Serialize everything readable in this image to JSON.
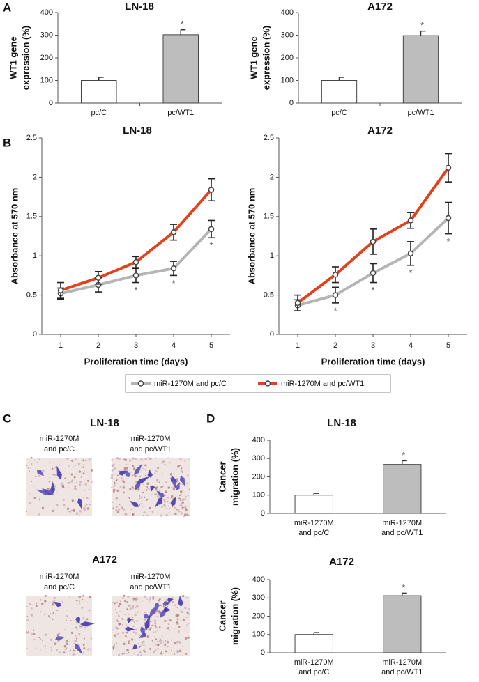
{
  "panels": [
    "A",
    "B",
    "C",
    "D"
  ],
  "panel_c": {
    "groups": [
      {
        "title": "LN-18",
        "labels": [
          [
            "miR-1270M",
            "and pc/C"
          ],
          [
            "miR-1270M",
            "and pc/WT1"
          ]
        ]
      },
      {
        "title": "A172",
        "labels": [
          [
            "miR-1270M",
            "and pc/C"
          ],
          [
            "miR-1270M",
            "and pc/WT1"
          ]
        ]
      }
    ]
  },
  "chart_data": [
    {
      "type": "bar",
      "title": "LN-18",
      "ylabel": [
        "WT1 gene",
        "expression (%)"
      ],
      "categories": [
        [
          "pc/C"
        ],
        [
          "pc/WT1"
        ]
      ],
      "values": [
        100,
        302
      ],
      "errors": [
        14,
        22
      ],
      "significance": [
        null,
        "*"
      ],
      "colors": [
        "#ffffff",
        "#bdbdbd"
      ],
      "ylim": [
        0,
        400
      ],
      "yticks": [
        0,
        100,
        200,
        300,
        400
      ]
    },
    {
      "type": "bar",
      "title": "A172",
      "ylabel": [
        "WT1 gene",
        "expression (%)"
      ],
      "categories": [
        [
          "pc/C"
        ],
        [
          "pc/WT1"
        ]
      ],
      "values": [
        100,
        298
      ],
      "errors": [
        14,
        20
      ],
      "significance": [
        null,
        "*"
      ],
      "colors": [
        "#ffffff",
        "#bdbdbd"
      ],
      "ylim": [
        0,
        400
      ],
      "yticks": [
        0,
        100,
        200,
        300,
        400
      ]
    },
    {
      "type": "line",
      "title": "LN-18",
      "ylabel": "Absorbance at 570 nm",
      "xlabel": "Proliferation time (days)",
      "x": [
        1,
        2,
        3,
        4,
        5
      ],
      "xlim": [
        0.5,
        5.5
      ],
      "xticks": [
        1,
        2,
        3,
        4,
        5
      ],
      "ylim": [
        0,
        2.5
      ],
      "yticks": [
        0,
        0.5,
        1,
        1.5,
        2,
        2.5
      ],
      "legend": "bottom",
      "series": [
        {
          "name": "miR-1270M and pc/C",
          "color": "#b5b5b5",
          "values": [
            0.52,
            0.63,
            0.75,
            0.84,
            1.34
          ],
          "errors": [
            0.07,
            0.09,
            0.09,
            0.09,
            0.11
          ],
          "significance": [
            null,
            null,
            "*",
            "*",
            "*"
          ]
        },
        {
          "name": "miR-1270M and pc/WT1",
          "color": "#e5401c",
          "values": [
            0.56,
            0.72,
            0.92,
            1.3,
            1.84
          ],
          "errors": [
            0.1,
            0.08,
            0.07,
            0.1,
            0.14
          ]
        }
      ]
    },
    {
      "type": "line",
      "title": "A172",
      "ylabel": "Absorbance at 570 nm",
      "xlabel": "Proliferation time (days)",
      "x": [
        1,
        2,
        3,
        4,
        5
      ],
      "xlim": [
        0.5,
        5.5
      ],
      "xticks": [
        1,
        2,
        3,
        4,
        5
      ],
      "ylim": [
        0,
        2.5
      ],
      "yticks": [
        0,
        0.5,
        1,
        1.5,
        2,
        2.5
      ],
      "series": [
        {
          "color": "#b5b5b5",
          "values": [
            0.37,
            0.5,
            0.78,
            1.03,
            1.48
          ],
          "errors": [
            0.07,
            0.1,
            0.12,
            0.15,
            0.2
          ],
          "significance": [
            null,
            "*",
            "*",
            "*",
            "*"
          ]
        },
        {
          "color": "#e5401c",
          "values": [
            0.4,
            0.76,
            1.18,
            1.45,
            2.12
          ],
          "errors": [
            0.1,
            0.1,
            0.16,
            0.1,
            0.18
          ]
        }
      ]
    },
    {
      "type": "bar",
      "title": "LN-18",
      "ylabel": [
        "Cancer",
        "migration (%)"
      ],
      "categories": [
        [
          "miR-1270M",
          "and pc/C"
        ],
        [
          "miR-1270M",
          "and pc/WT1"
        ]
      ],
      "values": [
        100,
        268
      ],
      "errors": [
        10,
        20
      ],
      "significance": [
        null,
        "*"
      ],
      "colors": [
        "#ffffff",
        "#bdbdbd"
      ],
      "ylim": [
        0,
        400
      ],
      "yticks": [
        0,
        100,
        200,
        300,
        400
      ]
    },
    {
      "type": "bar",
      "title": "A172",
      "ylabel": [
        "Cancer",
        "migration (%)"
      ],
      "categories": [
        [
          "miR-1270M",
          "and pc/C"
        ],
        [
          "miR-1270M",
          "and pc/WT1"
        ]
      ],
      "values": [
        100,
        312
      ],
      "errors": [
        10,
        14
      ],
      "significance": [
        null,
        "*"
      ],
      "colors": [
        "#ffffff",
        "#bdbdbd"
      ],
      "ylim": [
        0,
        400
      ],
      "yticks": [
        0,
        100,
        200,
        300,
        400
      ]
    }
  ]
}
